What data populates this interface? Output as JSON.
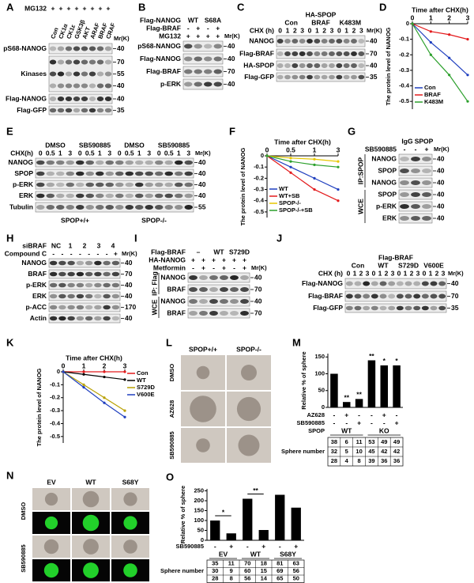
{
  "blots": [
    {
      "label": "A",
      "unit": "Mr(K)",
      "headers": [
        {
          "name": "MG132",
          "cells": [
            "+",
            "+",
            "+",
            "+",
            "+",
            "+",
            "+",
            "+"
          ]
        },
        {
          "cells": [
            "Con",
            "CK1α",
            "CK1ε",
            "GSK3β",
            "AKT",
            "ARAF",
            "BRAF",
            "CRAF"
          ]
        }
      ],
      "rows": [
        {
          "name": "pS68-NANOG",
          "mw": [
            40
          ]
        },
        {
          "name": "Kinases",
          "mw": [
            70,
            55,
            40
          ]
        },
        {
          "name": "Flag-NANOG",
          "mw": [
            40
          ]
        },
        {
          "name": "Flag-GFP",
          "mw": [
            35
          ]
        }
      ]
    },
    {
      "label": "B",
      "unit": "Mr(K)",
      "headers": [
        {
          "name": "Flag-NANOG",
          "cells": [
            "WT",
            "S68A"
          ]
        },
        {
          "name": "Flag-BRAF",
          "cells": [
            "-",
            "+",
            "-",
            "+"
          ]
        },
        {
          "name": "MG132",
          "cells": [
            "+",
            "+",
            "+",
            "+"
          ]
        }
      ],
      "rows": [
        {
          "name": "pS68-NANOG",
          "mw": [
            40
          ]
        },
        {
          "name": "Flag-NANOG",
          "mw": [
            40
          ]
        },
        {
          "name": "Flag-BRAF",
          "mw": [
            70
          ]
        },
        {
          "name": "p-ERK",
          "mw": [
            40
          ]
        }
      ]
    },
    {
      "label": "C",
      "unit": "Mr(K)",
      "headers": [
        {
          "cells": [
            "HA-SPOP"
          ]
        },
        {
          "cells": [
            "Con",
            "BRAF",
            "K483M"
          ]
        },
        {
          "name": "CHX (h)",
          "cells": [
            0,
            1,
            2,
            3,
            0,
            1,
            2,
            3,
            0,
            1,
            2,
            3
          ]
        }
      ],
      "rows": [
        {
          "name": "NANOG",
          "mw": [
            40
          ]
        },
        {
          "name": "Flag-BRAF",
          "mw": [
            70
          ]
        },
        {
          "name": "HA-SPOP",
          "mw": [
            40
          ]
        },
        {
          "name": "Flag-GFP",
          "mw": [
            35
          ]
        }
      ]
    },
    {
      "label": "E",
      "unit": "Mr(K)",
      "headers": [
        {
          "cells": [
            "DMSO",
            "SB590885",
            "DMSO",
            "SB590885"
          ]
        },
        {
          "name": "CHX(h)",
          "cells": [
            0,
            0.5,
            1,
            3,
            0,
            0.5,
            1,
            3,
            0,
            0.5,
            1,
            3,
            0,
            0.5,
            1,
            3
          ]
        }
      ],
      "rows": [
        {
          "name": "NANOG",
          "mw": [
            40
          ]
        },
        {
          "name": "SPOP",
          "mw": [
            40
          ]
        },
        {
          "name": "p-ERK",
          "mw": [
            40
          ]
        },
        {
          "name": "ERK",
          "mw": [
            40
          ]
        },
        {
          "name": "Tubulin",
          "mw": [
            55
          ]
        }
      ],
      "footer": [
        "SPOP+/+",
        "SPOP-/-"
      ]
    },
    {
      "label": "G",
      "unit": "Mr(K)",
      "headers": [
        {
          "cells": [
            "IgG",
            "SPOP"
          ]
        },
        {
          "name": "SB590885",
          "cells": [
            "-",
            "-",
            "+"
          ]
        }
      ],
      "sections": [
        {
          "name": "IP:SPOP",
          "rows": [
            {
              "name": "NANOG",
              "mw": [
                40
              ]
            },
            {
              "name": "SPOP",
              "mw": [
                40
              ]
            },
            {
              "name": "NANOG",
              "mw": [
                40
              ]
            }
          ]
        },
        {
          "name": "WCE",
          "rows": [
            {
              "name": "SPOP",
              "mw": [
                40
              ]
            },
            {
              "name": "p-ERK",
              "mw": [
                40
              ]
            },
            {
              "name": "ERK",
              "mw": [
                40
              ]
            }
          ]
        }
      ]
    },
    {
      "label": "H",
      "unit": "Mr(K)",
      "headers": [
        {
          "name": "siBRAF",
          "cells": [
            "NC",
            "1",
            "2",
            "3",
            "4"
          ]
        },
        {
          "name": "Compound C",
          "cells": [
            "-",
            "-",
            "-",
            "-",
            "-",
            "-",
            "-",
            "+"
          ]
        }
      ],
      "rows": [
        {
          "name": "NANOG",
          "mw": [
            40
          ]
        },
        {
          "name": "BRAF",
          "mw": [
            70
          ]
        },
        {
          "name": "p-ERK",
          "mw": [
            40
          ]
        },
        {
          "name": "ERK",
          "mw": [
            40
          ]
        },
        {
          "name": "p-ACC",
          "mw": [
            170
          ]
        },
        {
          "name": "Actin",
          "mw": [
            40
          ]
        }
      ]
    },
    {
      "label": "I",
      "unit": "Mr(K)",
      "headers": [
        {
          "name": "Flag-BRAF",
          "cells": [
            "–",
            "WT",
            "S729D"
          ]
        },
        {
          "name": "HA-NANOG",
          "cells": [
            "+",
            "+",
            "+",
            "+",
            "+",
            "+"
          ]
        },
        {
          "name": "Metformin",
          "cells": [
            "-",
            "+",
            "-",
            "+",
            "-",
            "+"
          ]
        }
      ],
      "sections": [
        {
          "name": "IP: Flag",
          "rows": [
            {
              "name": "NANOG",
              "mw": [
                40
              ]
            },
            {
              "name": "BRAF",
              "mw": [
                70
              ]
            }
          ]
        },
        {
          "name": "WCE",
          "rows": [
            {
              "name": "NANOG",
              "mw": [
                40
              ]
            },
            {
              "name": "BRAF",
              "mw": [
                70
              ]
            }
          ]
        }
      ]
    },
    {
      "label": "J",
      "unit": "Mr(K)",
      "headers": [
        {
          "cells": [
            "Flag-BRAF"
          ]
        },
        {
          "cells": [
            "Con",
            "WT",
            "S729D",
            "V600E"
          ]
        },
        {
          "name": "CHX (h)",
          "cells": [
            0,
            1,
            2,
            3,
            0,
            1,
            2,
            3,
            0,
            1,
            2,
            3,
            0,
            1,
            2,
            3
          ]
        }
      ],
      "rows": [
        {
          "name": "Flag-NANOG",
          "mw": [
            40
          ]
        },
        {
          "name": "Flag-BRAF",
          "mw": [
            70
          ]
        },
        {
          "name": "Flag-GFP",
          "mw": [
            35
          ]
        }
      ]
    }
  ],
  "images": [
    {
      "label": "L",
      "columns": [
        "SPOP+/+",
        "SPOP-/-"
      ],
      "rows": [
        "DMSO",
        "AZ628",
        "SB590885"
      ]
    },
    {
      "label": "N",
      "columns": [
        "EV",
        "WT",
        "S68Y"
      ],
      "rows": [
        "DMSO",
        "SB590885"
      ]
    }
  ],
  "chart_data": [
    {
      "type": "line",
      "label": "D",
      "title": "Time after CHX(h)",
      "y_label": "The protein level of NANOG",
      "x": [
        0,
        1,
        2,
        3
      ],
      "xlim": [
        0,
        3
      ],
      "xticks": [
        0,
        1,
        2,
        3
      ],
      "ylim": [
        -0.55,
        0
      ],
      "yticks": [
        0,
        -0.1,
        -0.2,
        -0.3,
        -0.4,
        -0.5
      ],
      "legend": "lower left",
      "series": [
        {
          "name": "Con",
          "color": "#1f3fbf",
          "values": [
            0,
            -0.12,
            -0.22,
            -0.33
          ]
        },
        {
          "name": "BRAF",
          "color": "#e31a1c",
          "values": [
            0,
            -0.05,
            -0.07,
            -0.1
          ]
        },
        {
          "name": "K483M",
          "color": "#2ca02c",
          "values": [
            0,
            -0.2,
            -0.33,
            -0.5
          ]
        }
      ]
    },
    {
      "type": "line",
      "label": "F",
      "title": "Time after CHX(h)",
      "y_label": "The protein level of NANOG",
      "categories": [
        0,
        0.5,
        1,
        3
      ],
      "ylim": [
        -0.55,
        0
      ],
      "yticks": [
        0,
        -0.1,
        -0.2,
        -0.3,
        -0.4,
        -0.5
      ],
      "legend": "lower left",
      "series": [
        {
          "name": "WT",
          "color": "#1f3fbf",
          "values": [
            0,
            -0.1,
            -0.2,
            -0.3
          ]
        },
        {
          "name": "WT+SB",
          "color": "#e31a1c",
          "values": [
            0,
            -0.15,
            -0.3,
            -0.4
          ]
        },
        {
          "name": "SPOP-/-",
          "color": "#e6c700",
          "values": [
            0,
            -0.02,
            -0.03,
            -0.05
          ]
        },
        {
          "name": "SPOP-/-+SB",
          "color": "#2ca02c",
          "values": [
            0,
            -0.05,
            -0.08,
            -0.1
          ]
        }
      ]
    },
    {
      "type": "line",
      "label": "K",
      "title": "Time after CHX(h)",
      "y_label": "The protein level of NANOG",
      "x": [
        0,
        1,
        2,
        3
      ],
      "xlim": [
        0,
        3
      ],
      "xticks": [
        0,
        1,
        2,
        3
      ],
      "ylim": [
        -0.55,
        0
      ],
      "yticks": [
        0,
        -0.1,
        -0.2,
        -0.3,
        -0.4,
        -0.5
      ],
      "legend": "upper right",
      "series": [
        {
          "name": "Con",
          "color": "#e31a1c",
          "values": [
            0,
            0,
            0,
            0
          ]
        },
        {
          "name": "WT",
          "color": "#000000",
          "values": [
            0,
            -0.02,
            -0.04,
            -0.06
          ]
        },
        {
          "name": "S729D",
          "color": "#b8a000",
          "values": [
            0,
            -0.1,
            -0.2,
            -0.3
          ]
        },
        {
          "name": "V600E",
          "color": "#1f3fbf",
          "values": [
            0,
            -0.12,
            -0.24,
            -0.35
          ]
        }
      ]
    },
    {
      "type": "bar",
      "label": "M",
      "y_label": "Relative % of sphere",
      "categories": [
        null,
        null,
        null,
        null,
        null,
        null
      ],
      "values": [
        100,
        16,
        25,
        140,
        125,
        125
      ],
      "color": "#000000",
      "ylim": [
        0,
        160
      ],
      "yticks": [
        0,
        50,
        100,
        150
      ],
      "annotations": [
        null,
        "**",
        "**",
        "**",
        "*",
        "*"
      ],
      "conditions": [
        {
          "name": "AZ628",
          "values": [
            "-",
            "+",
            "-",
            "-",
            "+",
            "-"
          ]
        },
        {
          "name": "SB590885",
          "values": [
            "-",
            "-",
            "+",
            "-",
            "-",
            "+"
          ]
        }
      ],
      "groups": {
        "name": "SPOP",
        "labels": [
          "WT",
          "KO"
        ]
      },
      "sphere_table": {
        "name": "Sphere number",
        "rows": [
          [
            38,
            6,
            11,
            53,
            49,
            49
          ],
          [
            32,
            5,
            10,
            45,
            42,
            42
          ],
          [
            28,
            4,
            8,
            39,
            36,
            36
          ]
        ]
      }
    },
    {
      "type": "bar",
      "label": "O",
      "y_label": "Relative % of sphere",
      "categories": [
        null,
        null,
        null,
        null,
        null,
        null
      ],
      "values": [
        100,
        35,
        210,
        52,
        230,
        165
      ],
      "color": "#000000",
      "ylim": [
        0,
        260
      ],
      "yticks": [
        0,
        50,
        100,
        150,
        200,
        250
      ],
      "annotations": [
        "*",
        null,
        "**",
        null,
        null,
        null
      ],
      "conditions": [
        {
          "name": "SB590885",
          "values": [
            "-",
            "+",
            "-",
            "+",
            "-",
            "+"
          ]
        }
      ],
      "groups": {
        "labels": [
          "EV",
          "WT",
          "S68Y"
        ]
      },
      "sphere_table": {
        "name": "Sphere number",
        "rows": [
          [
            35,
            11,
            70,
            18,
            81,
            63
          ],
          [
            30,
            9,
            60,
            15,
            69,
            56
          ],
          [
            28,
            8,
            56,
            14,
            65,
            50
          ]
        ]
      }
    }
  ]
}
